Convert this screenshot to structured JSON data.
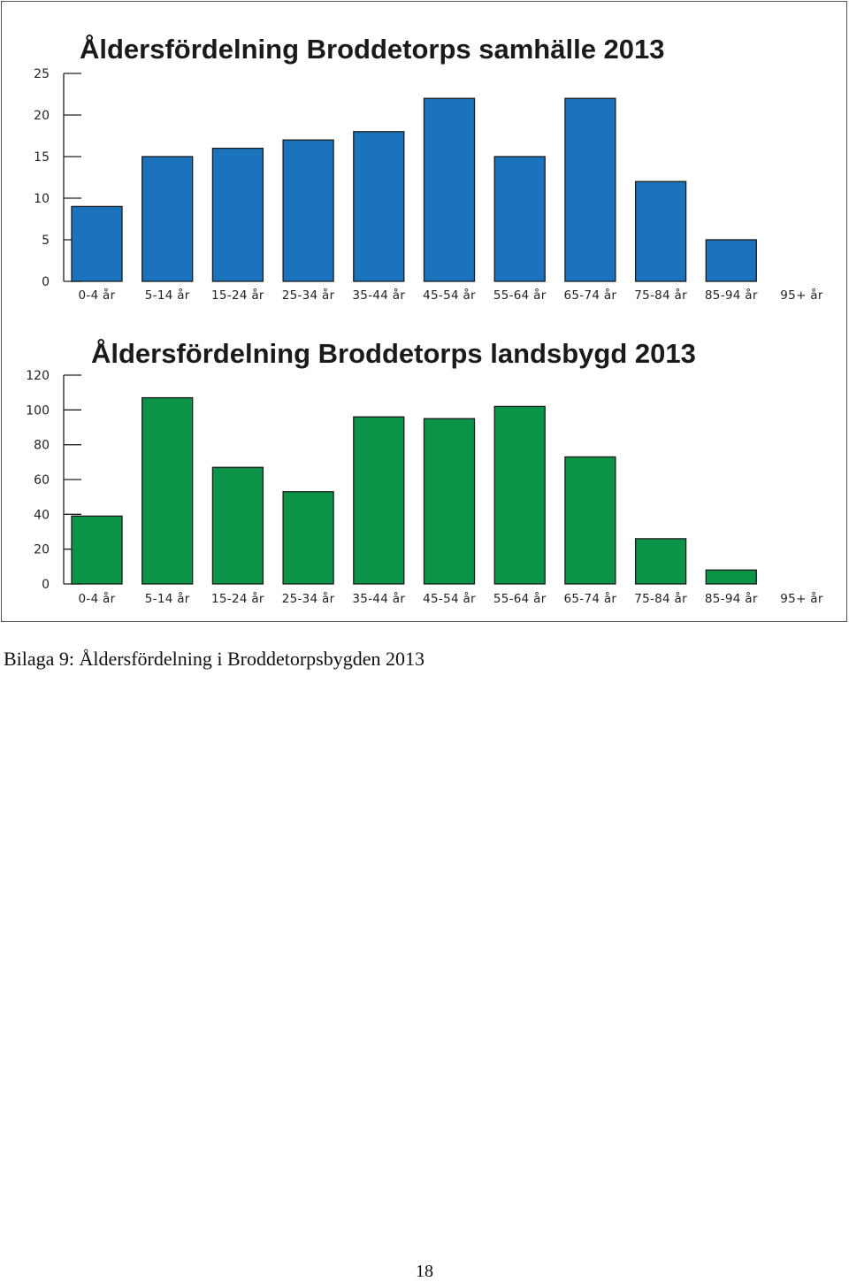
{
  "caption": "Bilaga 9: Åldersfördelning i Broddetorpsbygden 2013",
  "page_number": "18",
  "chart_data": [
    {
      "type": "bar",
      "title": "Åldersfördelning Broddetorps samhälle 2013",
      "xlabel": "",
      "ylabel": "",
      "categories": [
        "0-4 år",
        "5-14 år",
        "15-24 år",
        "25-34 år",
        "35-44 år",
        "45-54 år",
        "55-64 år",
        "65-74 år",
        "75-84 år",
        "85-94 år",
        "95+ år"
      ],
      "values": [
        9,
        15,
        16,
        17,
        18,
        22,
        15,
        22,
        12,
        5,
        0
      ],
      "ylim": [
        0,
        25
      ],
      "yticks": [
        "0",
        "5",
        "10",
        "15",
        "20",
        "25"
      ],
      "grid": false,
      "legend": "none",
      "bar_color": "#1a73bc"
    },
    {
      "type": "bar",
      "title": "Åldersfördelning Broddetorps landsbygd 2013",
      "xlabel": "",
      "ylabel": "",
      "categories": [
        "0-4 år",
        "5-14 år",
        "15-24 år",
        "25-34 år",
        "35-44 år",
        "45-54 år",
        "55-64 år",
        "65-74 år",
        "75-84 år",
        "85-94 år",
        "95+ år"
      ],
      "values": [
        39,
        107,
        67,
        53,
        96,
        95,
        102,
        73,
        26,
        8,
        0
      ],
      "ylim": [
        0,
        120
      ],
      "yticks": [
        "0",
        "20",
        "40",
        "60",
        "80",
        "100",
        "120"
      ],
      "grid": false,
      "legend": "none",
      "bar_color": "#0b9448"
    }
  ]
}
